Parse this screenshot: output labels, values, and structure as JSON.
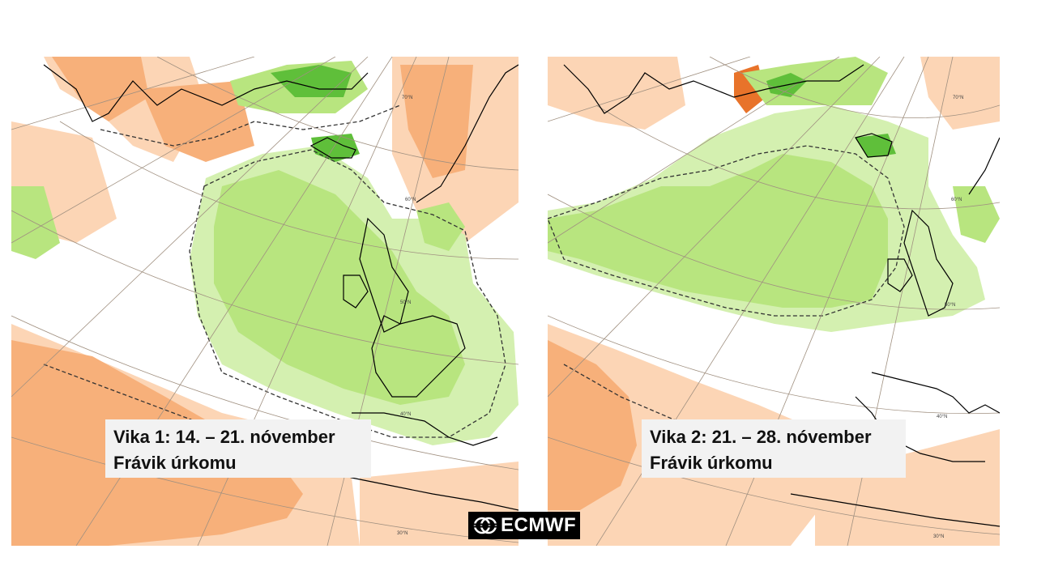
{
  "maps": [
    {
      "id": "week1",
      "caption_line1": "Vika 1: 14. – 21. nóvember",
      "caption_line2": "Frávik úrkomu",
      "lat_labels": [
        "70°N",
        "60°N",
        "50°N",
        "40°N",
        "30°N"
      ]
    },
    {
      "id": "week2",
      "caption_line1": "Vika 2: 21. – 28. nóvember",
      "caption_line2": "Frávik úrkomu",
      "lat_labels": [
        "70°N",
        "60°N",
        "50°N",
        "40°N",
        "30°N"
      ]
    }
  ],
  "logo": {
    "text": "ECMWF"
  },
  "colors": {
    "wet_light": "#d4f0b0",
    "wet_medium": "#b8e57f",
    "wet_dark": "#5fbf3a",
    "dry_light": "#fcd5b5",
    "dry_medium": "#f7b07a",
    "dry_dark": "#e8732a",
    "coast": "#000000",
    "grid": "#a09080"
  }
}
